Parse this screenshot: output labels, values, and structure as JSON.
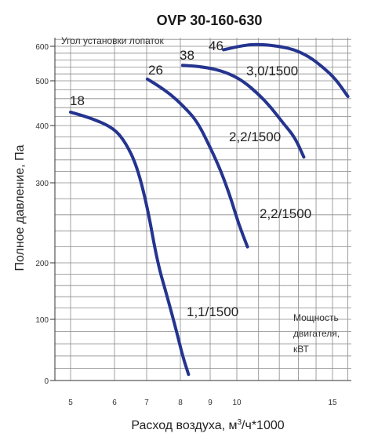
{
  "chart_data": {
    "type": "line",
    "title": "OVP 30-160-630",
    "xlabel": "Расход воздуха, м³/ч*1000",
    "ylabel": "Полное давление, Па",
    "x_scale": "log",
    "y_scale": "nonlinear",
    "x_ticks": [
      5,
      6,
      7,
      8,
      9,
      10,
      15
    ],
    "y_ticks": [
      0,
      100,
      200,
      300,
      400,
      500,
      600
    ],
    "blade_angle_label": "Угол установки лопаток",
    "power_label_lines": [
      "Мощность",
      "двигателя,",
      "кВТ"
    ],
    "grid": true,
    "series": [
      {
        "name": "18",
        "power": "1,1/1500",
        "x": [
          5.0,
          5.5,
          6.0,
          6.3,
          6.6,
          6.9,
          7.2,
          7.5,
          7.8,
          8.0,
          8.2
        ],
        "y": [
          430,
          415,
          395,
          370,
          330,
          270,
          200,
          140,
          80,
          40,
          10
        ]
      },
      {
        "name": "26",
        "power": "2,2/1500",
        "x": [
          6.9,
          7.2,
          7.6,
          8.0,
          8.5,
          9.0,
          9.4,
          9.8,
          10.1,
          10.5
        ],
        "y": [
          505,
          490,
          470,
          445,
          410,
          360,
          320,
          280,
          250,
          220
        ]
      },
      {
        "name": "38",
        "power": "2,2/1500",
        "x": [
          8.0,
          8.8,
          9.6,
          10.3,
          11.0,
          11.6,
          12.2,
          12.8,
          13.3
        ],
        "y": [
          545,
          540,
          525,
          500,
          470,
          440,
          405,
          380,
          345
        ]
      },
      {
        "name": "46",
        "power": "3,0/1500",
        "x": [
          9.5,
          10.0,
          10.6,
          11.2,
          12.0,
          12.8,
          13.6,
          14.4,
          15.2,
          16.0
        ],
        "y": [
          590,
          598,
          605,
          605,
          600,
          590,
          570,
          540,
          505,
          465
        ]
      }
    ]
  }
}
